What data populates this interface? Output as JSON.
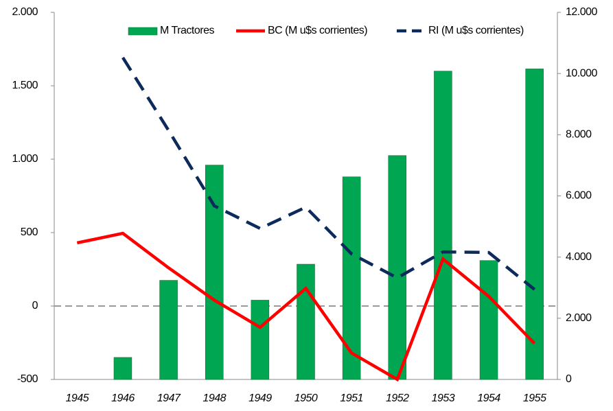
{
  "chart_data": {
    "type": "bar-line",
    "categories": [
      "1945",
      "1946",
      "1947",
      "1948",
      "1949",
      "1950",
      "1951",
      "1952",
      "1953",
      "1954",
      "1955"
    ],
    "series": [
      {
        "name": "M Tractores",
        "type": "bar",
        "color": "#00a651",
        "values": [
          null,
          -350,
          175,
          960,
          40,
          285,
          880,
          1025,
          1600,
          310,
          1615
        ]
      },
      {
        "name": "BC (M u$s corrientes)",
        "type": "line",
        "color": "#ff0000",
        "values": [
          430,
          495,
          260,
          40,
          -145,
          120,
          -320,
          -500,
          320,
          65,
          -255
        ]
      },
      {
        "name": "RI (M u$s corrientes)",
        "type": "line",
        "dashed": true,
        "axis": "y2",
        "color": "#0d2a5c",
        "values": [
          null,
          10520,
          8140,
          5675,
          4935,
          5630,
          4105,
          3320,
          4170,
          4150,
          2940
        ]
      }
    ],
    "ylim": [
      -500,
      2000
    ],
    "yticks": [
      -500,
      0,
      500,
      {
        "value": 1000,
        "label": "1.000"
      },
      {
        "value": 1500,
        "label": "1.500"
      },
      {
        "value": 2000,
        "label": "2.000"
      }
    ],
    "y2lim": [
      0,
      12000
    ],
    "y2ticks": [
      0,
      {
        "value": 2000,
        "label": "2.000"
      },
      {
        "value": 4000,
        "label": "4.000"
      },
      {
        "value": 6000,
        "label": "6.000"
      },
      {
        "value": 8000,
        "label": "8.000"
      },
      {
        "value": 10000,
        "label": "10.000"
      },
      {
        "value": 12000,
        "label": "12.000"
      }
    ],
    "zero_line": true,
    "legend": "top"
  }
}
